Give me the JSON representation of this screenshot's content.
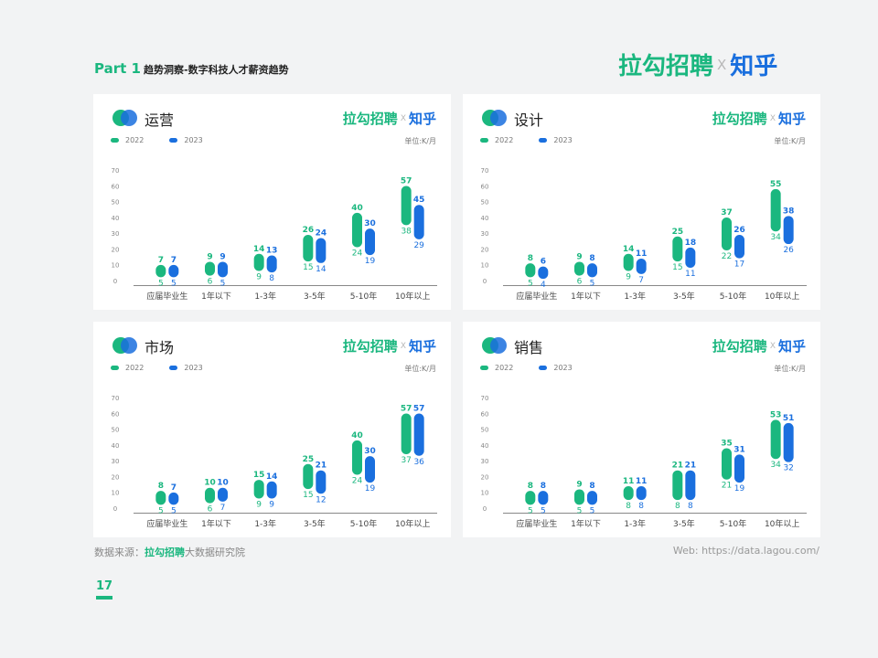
{
  "header": {
    "part": "Part 1",
    "subtitle": "趋势洞察-数字科技人才薪资趋势",
    "logo": {
      "left": "拉勾招聘",
      "x": "X",
      "right": "知乎"
    }
  },
  "colors": {
    "green": "#1bb77f",
    "blue": "#1a6fde",
    "axis": "#888888",
    "tick": "#888888"
  },
  "legend": {
    "series_2022": "2022",
    "series_2023": "2023"
  },
  "unit_label": "单位:K/月",
  "card_logo": {
    "left": "拉勾招聘",
    "x": "X",
    "right": "知乎"
  },
  "chart_data": [
    {
      "type": "range-bar",
      "title": "运营",
      "categories": [
        "应届毕业生",
        "1年以下",
        "1-3年",
        "3-5年",
        "5-10年",
        "10年以上"
      ],
      "yticks": [
        0,
        10,
        20,
        30,
        40,
        50,
        60,
        70
      ],
      "ylim": [
        0,
        70
      ],
      "series": [
        {
          "name": "2022",
          "low": [
            5,
            6,
            9,
            15,
            24,
            38
          ],
          "high": [
            7,
            9,
            14,
            26,
            40,
            57
          ]
        },
        {
          "name": "2023",
          "low": [
            5,
            5,
            8,
            14,
            19,
            29
          ],
          "high": [
            7,
            9,
            13,
            24,
            30,
            45
          ]
        }
      ]
    },
    {
      "type": "range-bar",
      "title": "设计",
      "categories": [
        "应届毕业生",
        "1年以下",
        "1-3年",
        "3-5年",
        "5-10年",
        "10年以上"
      ],
      "yticks": [
        0,
        10,
        20,
        30,
        40,
        50,
        60,
        70
      ],
      "ylim": [
        0,
        70
      ],
      "series": [
        {
          "name": "2022",
          "low": [
            5,
            6,
            9,
            15,
            22,
            34
          ],
          "high": [
            8,
            9,
            14,
            25,
            37,
            55
          ]
        },
        {
          "name": "2023",
          "low": [
            4,
            5,
            7,
            11,
            17,
            26
          ],
          "high": [
            6,
            8,
            11,
            18,
            26,
            38
          ]
        }
      ]
    },
    {
      "type": "range-bar",
      "title": "市场",
      "categories": [
        "应届毕业生",
        "1年以下",
        "1-3年",
        "3-5年",
        "5-10年",
        "10年以上"
      ],
      "yticks": [
        0,
        10,
        20,
        30,
        40,
        50,
        60,
        70
      ],
      "ylim": [
        0,
        70
      ],
      "series": [
        {
          "name": "2022",
          "low": [
            5,
            6,
            9,
            15,
            24,
            37
          ],
          "high": [
            8,
            10,
            15,
            25,
            40,
            57
          ]
        },
        {
          "name": "2023",
          "low": [
            5,
            7,
            9,
            12,
            19,
            36
          ],
          "high": [
            7,
            10,
            14,
            21,
            30,
            57
          ]
        }
      ]
    },
    {
      "type": "range-bar",
      "title": "销售",
      "categories": [
        "应届毕业生",
        "1年以下",
        "1-3年",
        "3-5年",
        "5-10年",
        "10年以上"
      ],
      "yticks": [
        0,
        10,
        20,
        30,
        40,
        50,
        60,
        70
      ],
      "ylim": [
        0,
        70
      ],
      "series": [
        {
          "name": "2022",
          "low": [
            5,
            5,
            8,
            8,
            21,
            34
          ],
          "high": [
            8,
            9,
            11,
            21,
            35,
            53
          ]
        },
        {
          "name": "2023",
          "low": [
            5,
            5,
            8,
            8,
            19,
            32
          ],
          "high": [
            8,
            8,
            11,
            21,
            31,
            51
          ]
        }
      ]
    }
  ],
  "footer": {
    "source_prefix": "数据来源：",
    "source_brand": "拉勾招聘",
    "source_suffix": "大数据研究院",
    "web": "Web: https://data.lagou.com/",
    "page_number": "17"
  }
}
